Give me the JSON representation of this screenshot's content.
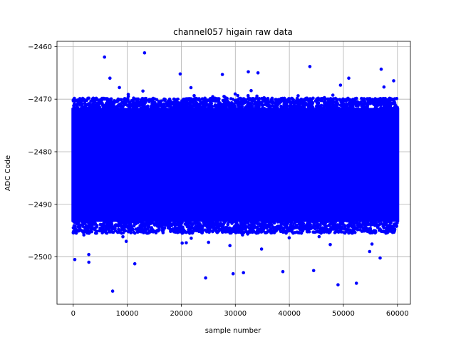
{
  "chart_data": {
    "type": "scatter",
    "title": "channel057 higain raw data",
    "xlabel": "sample number",
    "ylabel": "ADC Code",
    "xlim": [
      -3000,
      62400
    ],
    "ylim": [
      -2509,
      -2459
    ],
    "x_ticks": [
      0,
      10000,
      20000,
      30000,
      40000,
      50000,
      60000
    ],
    "y_ticks": [
      -2460,
      -2470,
      -2480,
      -2490,
      -2500
    ],
    "x_tick_labels": [
      "0",
      "10000",
      "20000",
      "30000",
      "40000",
      "50000",
      "60000"
    ],
    "y_tick_labels": [
      "−2460",
      "−2470",
      "−2480",
      "−2490",
      "−2500"
    ],
    "grid": true,
    "marker_color": "#0000ff",
    "series": [
      {
        "x_range": [
          0,
          59999
        ],
        "n_samples": 60000,
        "dense_band": [
          -2493,
          -2472
        ],
        "outliers": [
          {
            "x": 5800,
            "y": -2462
          },
          {
            "x": 13200,
            "y": -2461.2
          },
          {
            "x": 43800,
            "y": -2463.8
          },
          {
            "x": 57000,
            "y": -2464.3
          },
          {
            "x": 6800,
            "y": -2466
          },
          {
            "x": 19800,
            "y": -2465.2
          },
          {
            "x": 27600,
            "y": -2465.3
          },
          {
            "x": 32400,
            "y": -2464.8
          },
          {
            "x": 34200,
            "y": -2465
          },
          {
            "x": 51000,
            "y": -2466
          },
          {
            "x": 59300,
            "y": -2466.5
          },
          {
            "x": 7300,
            "y": -2506.5
          },
          {
            "x": 49000,
            "y": -2505.3
          },
          {
            "x": 52400,
            "y": -2505
          },
          {
            "x": 24500,
            "y": -2504
          },
          {
            "x": 29600,
            "y": -2503.2
          },
          {
            "x": 31500,
            "y": -2503
          },
          {
            "x": 38800,
            "y": -2502.8
          },
          {
            "x": 44500,
            "y": -2502.6
          },
          {
            "x": 2900,
            "y": -2501
          },
          {
            "x": 11400,
            "y": -2501.3
          },
          {
            "x": 300,
            "y": -2500.5
          },
          {
            "x": 56800,
            "y": -2500.2
          }
        ]
      }
    ]
  }
}
